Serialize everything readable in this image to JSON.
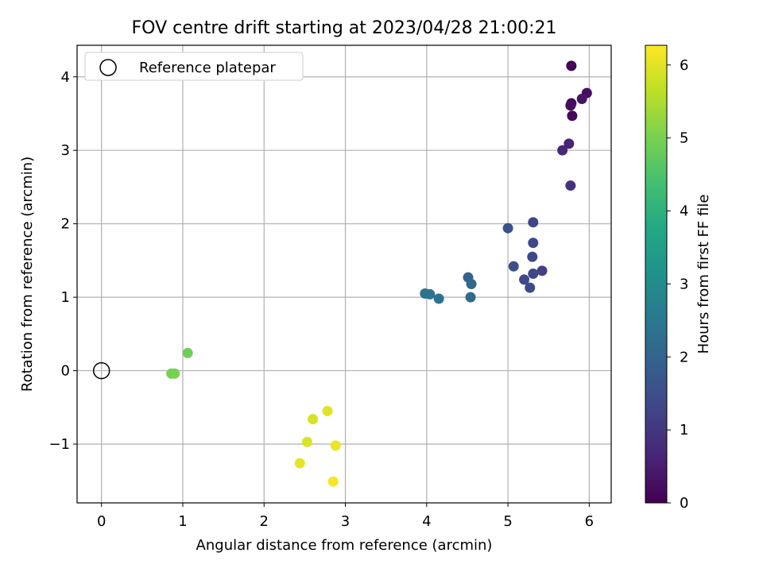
{
  "chart_data": {
    "type": "scatter",
    "title": "FOV centre drift starting at 2023/04/28 21:00:21",
    "xlabel": "Angular distance from reference (arcmin)",
    "ylabel": "Rotation from reference (arcmin)",
    "xlim": [
      -0.3,
      6.27
    ],
    "ylim": [
      -1.8,
      4.43
    ],
    "xticks": [
      0,
      1,
      2,
      3,
      4,
      5,
      6
    ],
    "yticks": [
      -1,
      0,
      1,
      2,
      3,
      4
    ],
    "xtick_labels": [
      "0",
      "1",
      "2",
      "3",
      "4",
      "5",
      "6"
    ],
    "ytick_labels": [
      "−1",
      "0",
      "1",
      "2",
      "3",
      "4"
    ],
    "grid": true,
    "legend": {
      "position": "top-left",
      "entries": [
        "Reference platepar"
      ]
    },
    "colorbar": {
      "label": "Hours from first FF file",
      "colormap": "viridis",
      "range": [
        0,
        6.27
      ],
      "ticks": [
        0,
        1,
        2,
        3,
        4,
        5,
        6
      ],
      "tick_labels": [
        "0",
        "1",
        "2",
        "3",
        "4",
        "5",
        "6"
      ]
    },
    "reference_point": {
      "x": 0,
      "y": 0
    },
    "series": [
      {
        "points": [
          {
            "x": 5.78,
            "y": 4.15,
            "c": 0.05
          },
          {
            "x": 5.97,
            "y": 3.78,
            "c": 0.25
          },
          {
            "x": 5.91,
            "y": 3.7,
            "c": 0.35
          },
          {
            "x": 5.78,
            "y": 3.64,
            "c": 0.1
          },
          {
            "x": 5.77,
            "y": 3.61,
            "c": 0.2
          },
          {
            "x": 5.79,
            "y": 3.47,
            "c": 0.12
          },
          {
            "x": 5.75,
            "y": 3.09,
            "c": 0.65
          },
          {
            "x": 5.67,
            "y": 3.0,
            "c": 0.7
          },
          {
            "x": 5.77,
            "y": 2.52,
            "c": 0.9
          },
          {
            "x": 5.31,
            "y": 2.02,
            "c": 1.3
          },
          {
            "x": 5.0,
            "y": 1.94,
            "c": 1.6
          },
          {
            "x": 5.31,
            "y": 1.74,
            "c": 1.35
          },
          {
            "x": 5.3,
            "y": 1.55,
            "c": 1.4
          },
          {
            "x": 5.07,
            "y": 1.42,
            "c": 1.5
          },
          {
            "x": 5.42,
            "y": 1.36,
            "c": 1.2
          },
          {
            "x": 5.31,
            "y": 1.32,
            "c": 1.3
          },
          {
            "x": 5.2,
            "y": 1.24,
            "c": 1.35
          },
          {
            "x": 5.27,
            "y": 1.13,
            "c": 1.4
          },
          {
            "x": 4.51,
            "y": 1.27,
            "c": 2.0
          },
          {
            "x": 4.55,
            "y": 1.18,
            "c": 2.1
          },
          {
            "x": 4.54,
            "y": 1.0,
            "c": 2.15
          },
          {
            "x": 3.98,
            "y": 1.05,
            "c": 2.45
          },
          {
            "x": 4.04,
            "y": 1.04,
            "c": 2.4
          },
          {
            "x": 4.15,
            "y": 0.98,
            "c": 2.35
          },
          {
            "x": 1.06,
            "y": 0.24,
            "c": 4.9
          },
          {
            "x": 0.86,
            "y": -0.04,
            "c": 4.95
          },
          {
            "x": 0.9,
            "y": -0.04,
            "c": 5.0
          },
          {
            "x": 2.78,
            "y": -0.55,
            "c": 6.0
          },
          {
            "x": 2.6,
            "y": -0.66,
            "c": 5.9
          },
          {
            "x": 2.53,
            "y": -0.97,
            "c": 5.95
          },
          {
            "x": 2.88,
            "y": -1.02,
            "c": 6.1
          },
          {
            "x": 2.44,
            "y": -1.26,
            "c": 6.05
          },
          {
            "x": 2.85,
            "y": -1.51,
            "c": 6.2
          }
        ]
      }
    ]
  }
}
